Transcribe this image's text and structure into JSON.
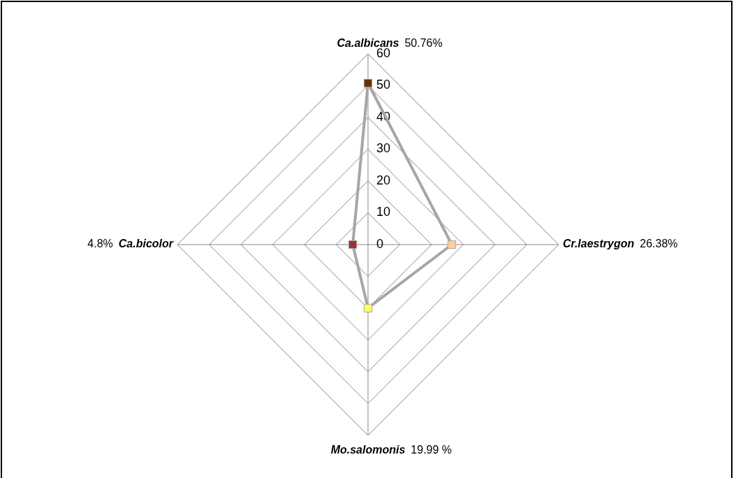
{
  "chart_data": {
    "type": "radar",
    "categories": [
      "Ca.albicans",
      "Cr.laestrygon",
      "Mo.salomonis",
      "Ca.bicolor"
    ],
    "series": [
      {
        "color": "#a6a6a6",
        "colors": [
          "#663300",
          "#ffcc99",
          "#ffff66",
          "#993333"
        ],
        "values": [
          50.76,
          26.38,
          19.99,
          4.8
        ]
      }
    ],
    "value_labels": [
      "50.76%",
      "26.38%",
      "19.99 %",
      "4.8%"
    ],
    "ylim": [
      0,
      60
    ],
    "yticks": [
      0,
      10,
      20,
      30,
      40,
      50,
      60
    ],
    "grid": true,
    "legend": false,
    "marker": "square"
  }
}
